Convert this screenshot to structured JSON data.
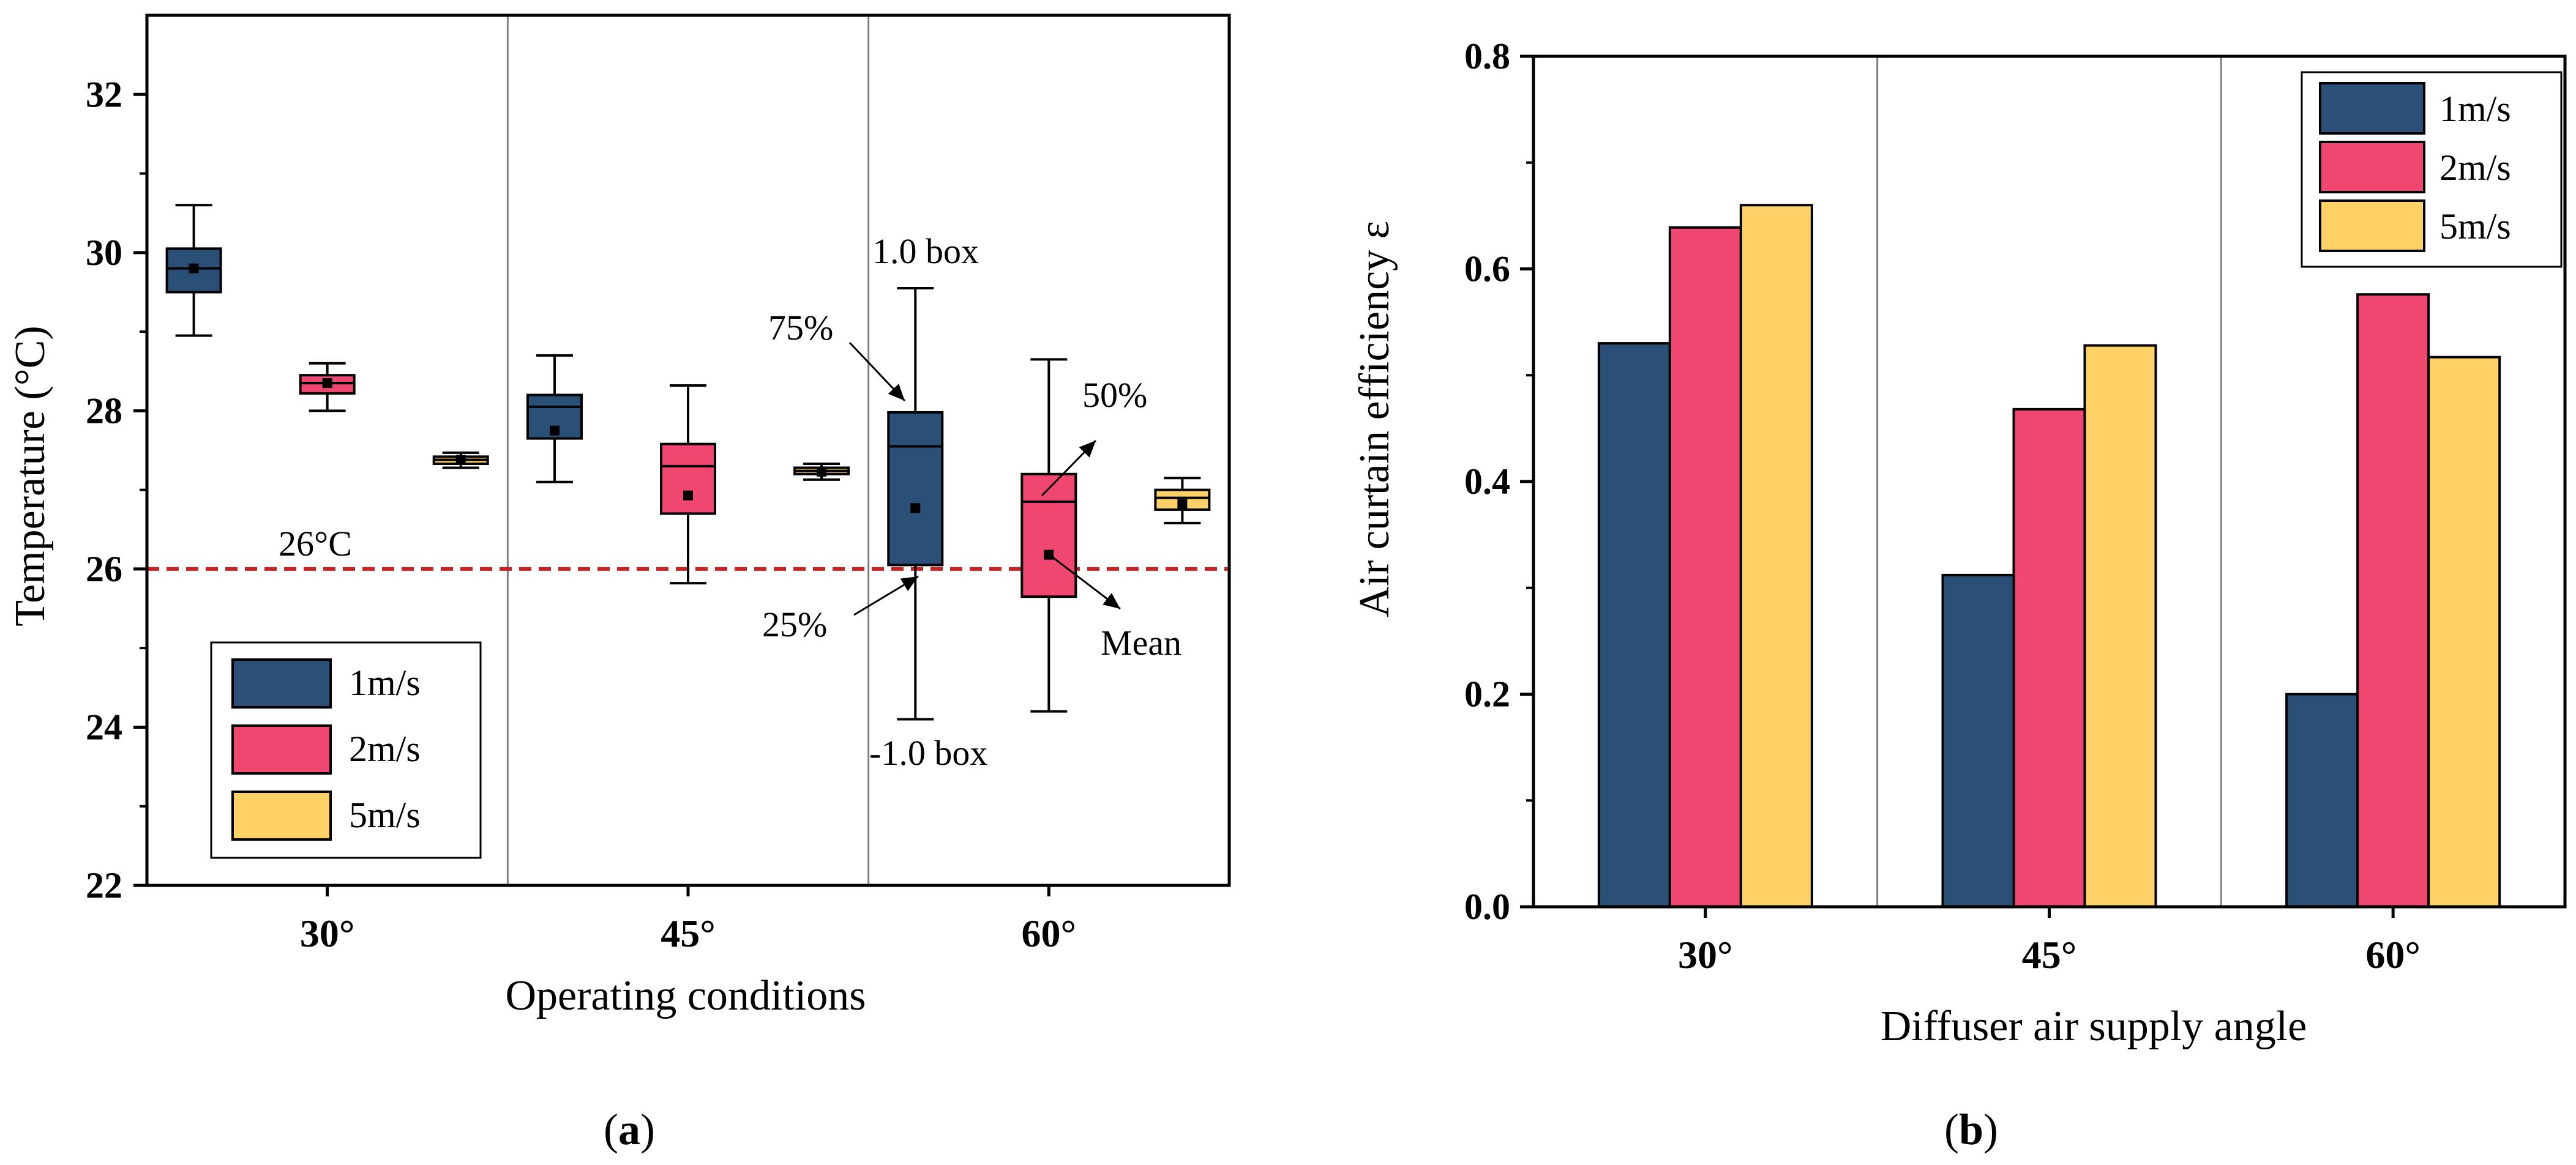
{
  "colors": {
    "speed_1": "#2a5078",
    "speed_2": "#ef476f",
    "speed_5": "#ffd166",
    "reference_line": "#cc2222",
    "axis": "#000000",
    "divider": "#808080"
  },
  "chart_data": [
    {
      "type": "box",
      "panel_label": "a",
      "xlabel": "Operating conditions",
      "ylabel": "Temperature (°C)",
      "ylim": [
        22,
        33
      ],
      "yticks": [
        "22",
        "24",
        "26",
        "28",
        "30",
        "32"
      ],
      "ytick_values": [
        22,
        24,
        26,
        28,
        30,
        32
      ],
      "categories": [
        "30°",
        "45°",
        "60°"
      ],
      "legend": [
        "1m/s",
        "2m/s",
        "5m/s"
      ],
      "legend_position": "bottom-left",
      "reference_line": {
        "value": 26,
        "label": "26°C"
      },
      "series": [
        {
          "name": "1m/s",
          "boxes": [
            {
              "whisker_low": 28.95,
              "q1": 29.5,
              "median": 29.8,
              "q3": 30.05,
              "whisker_high": 30.6,
              "mean": 29.8
            },
            {
              "whisker_low": 27.1,
              "q1": 27.65,
              "median": 28.05,
              "q3": 28.2,
              "whisker_high": 28.7,
              "mean": 27.75
            },
            {
              "whisker_low": 24.1,
              "q1": 26.05,
              "median": 27.55,
              "q3": 27.98,
              "whisker_high": 29.55,
              "mean": 26.77
            }
          ]
        },
        {
          "name": "2m/s",
          "boxes": [
            {
              "whisker_low": 28.0,
              "q1": 28.22,
              "median": 28.35,
              "q3": 28.45,
              "whisker_high": 28.6,
              "mean": 28.35
            },
            {
              "whisker_low": 25.82,
              "q1": 26.7,
              "median": 27.3,
              "q3": 27.58,
              "whisker_high": 28.32,
              "mean": 26.93
            },
            {
              "whisker_low": 24.2,
              "q1": 25.65,
              "median": 26.85,
              "q3": 27.2,
              "whisker_high": 28.65,
              "mean": 26.18
            }
          ]
        },
        {
          "name": "5m/s",
          "boxes": [
            {
              "whisker_low": 27.28,
              "q1": 27.33,
              "median": 27.38,
              "q3": 27.42,
              "whisker_high": 27.47,
              "mean": 27.38
            },
            {
              "whisker_low": 27.13,
              "q1": 27.2,
              "median": 27.24,
              "q3": 27.28,
              "whisker_high": 27.33,
              "mean": 27.23
            },
            {
              "whisker_low": 26.58,
              "q1": 26.75,
              "median": 26.9,
              "q3": 27.0,
              "whisker_high": 27.15,
              "mean": 26.82
            }
          ]
        }
      ],
      "annotations": {
        "box_high": "1.0 box",
        "box_low": "-1.0 box",
        "q3": "75%",
        "median": "50%",
        "q1": "25%",
        "mean": "Mean"
      }
    },
    {
      "type": "bar",
      "panel_label": "b",
      "xlabel": "Diffuser air supply angle",
      "ylabel": "Air curtain efficiency ε",
      "ylim": [
        0.0,
        0.8
      ],
      "yticks": [
        "0.0",
        "0.2",
        "0.4",
        "0.6",
        "0.8"
      ],
      "ytick_values": [
        0.0,
        0.2,
        0.4,
        0.6,
        0.8
      ],
      "categories": [
        "30°",
        "45°",
        "60°"
      ],
      "legend_position": "top-right",
      "series": [
        {
          "name": "1m/s",
          "values": [
            0.53,
            0.312,
            0.2
          ]
        },
        {
          "name": "2m/s",
          "values": [
            0.639,
            0.468,
            0.576
          ]
        },
        {
          "name": "5m/s",
          "values": [
            0.66,
            0.528,
            0.517
          ]
        }
      ]
    }
  ]
}
